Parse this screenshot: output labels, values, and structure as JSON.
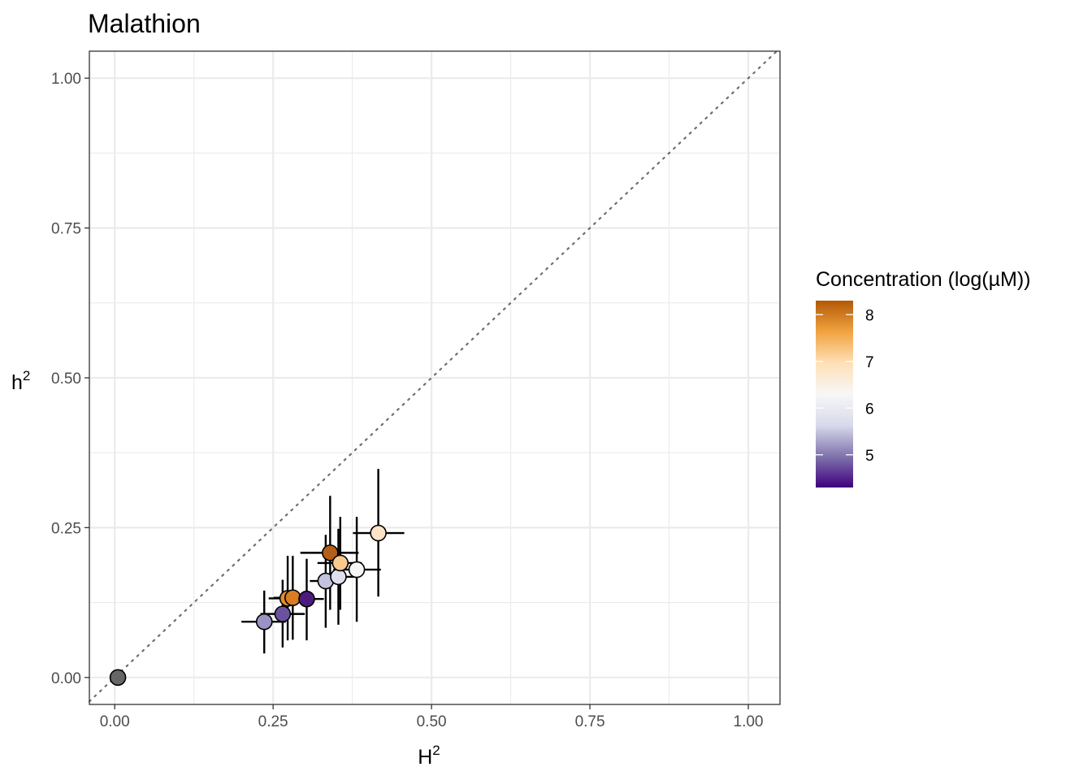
{
  "chart_data": {
    "type": "scatter",
    "title": "Malathion",
    "xlabel": "H",
    "xlabel_sup": "2",
    "ylabel": "h",
    "ylabel_sup": "2",
    "xlim": [
      -0.04,
      1.05
    ],
    "ylim": [
      -0.045,
      1.045
    ],
    "xticks": [
      0.0,
      0.25,
      0.5,
      0.75,
      1.0
    ],
    "yticks": [
      0.0,
      0.25,
      0.5,
      0.75,
      1.0
    ],
    "xtick_labels": [
      "0.00",
      "0.25",
      "0.50",
      "0.75",
      "1.00"
    ],
    "ytick_labels": [
      "0.00",
      "0.25",
      "0.50",
      "0.75",
      "1.00"
    ],
    "grid": true,
    "reference_line": "y = x (dotted)",
    "legend": {
      "title": "Concentration (log(µM))",
      "placement": "right",
      "range": [
        4.3,
        8.3
      ],
      "ticks": [
        5,
        6,
        7,
        8
      ],
      "tick_labels": [
        "5",
        "6",
        "7",
        "8"
      ],
      "palette": [
        "#3f007d",
        "#8073ac",
        "#d8daeb",
        "#f7f7f7",
        "#fee0b6",
        "#f1a340",
        "#b35806"
      ]
    },
    "points": [
      {
        "x": 0.005,
        "y": 0.0,
        "xerr": [
          0.005,
          0.005
        ],
        "yerr": [
          0.0,
          0.0
        ],
        "conc": null,
        "fill": "#666666"
      },
      {
        "x": 0.236,
        "y": 0.093,
        "xerr": [
          0.2,
          0.27
        ],
        "yerr": [
          0.04,
          0.145
        ],
        "conc": 5.0,
        "fill": "#9b93c4"
      },
      {
        "x": 0.265,
        "y": 0.106,
        "xerr": [
          0.23,
          0.3
        ],
        "yerr": [
          0.05,
          0.163
        ],
        "conc": 4.7,
        "fill": "#6b52a1"
      },
      {
        "x": 0.273,
        "y": 0.132,
        "xerr": [
          0.243,
          0.303
        ],
        "yerr": [
          0.062,
          0.203
        ],
        "conc": 7.35,
        "fill": "#e08c33"
      },
      {
        "x": 0.281,
        "y": 0.133,
        "xerr": [
          0.251,
          0.311
        ],
        "yerr": [
          0.063,
          0.203
        ],
        "conc": 7.6,
        "fill": "#d97c23"
      },
      {
        "x": 0.303,
        "y": 0.131,
        "xerr": [
          0.275,
          0.33
        ],
        "yerr": [
          0.062,
          0.198
        ],
        "conc": 4.4,
        "fill": "#4b1c7d"
      },
      {
        "x": 0.333,
        "y": 0.161,
        "xerr": [
          0.308,
          0.358
        ],
        "yerr": [
          0.083,
          0.238
        ],
        "conc": 5.55,
        "fill": "#c3c3df"
      },
      {
        "x": 0.34,
        "y": 0.208,
        "xerr": [
          0.293,
          0.385
        ],
        "yerr": [
          0.113,
          0.303
        ],
        "conc": 8.2,
        "fill": "#b35f1a"
      },
      {
        "x": 0.353,
        "y": 0.168,
        "xerr": [
          0.325,
          0.38
        ],
        "yerr": [
          0.088,
          0.248
        ],
        "conc": 5.8,
        "fill": "#dfdfee"
      },
      {
        "x": 0.356,
        "y": 0.191,
        "xerr": [
          0.32,
          0.39
        ],
        "yerr": [
          0.113,
          0.268
        ],
        "conc": 7.15,
        "fill": "#f9c98e"
      },
      {
        "x": 0.382,
        "y": 0.18,
        "xerr": [
          0.345,
          0.42
        ],
        "yerr": [
          0.093,
          0.268
        ],
        "conc": 6.25,
        "fill": "#f6f6f6"
      },
      {
        "x": 0.416,
        "y": 0.241,
        "xerr": [
          0.376,
          0.457
        ],
        "yerr": [
          0.135,
          0.348
        ],
        "conc": 6.8,
        "fill": "#fde4c6"
      }
    ]
  }
}
